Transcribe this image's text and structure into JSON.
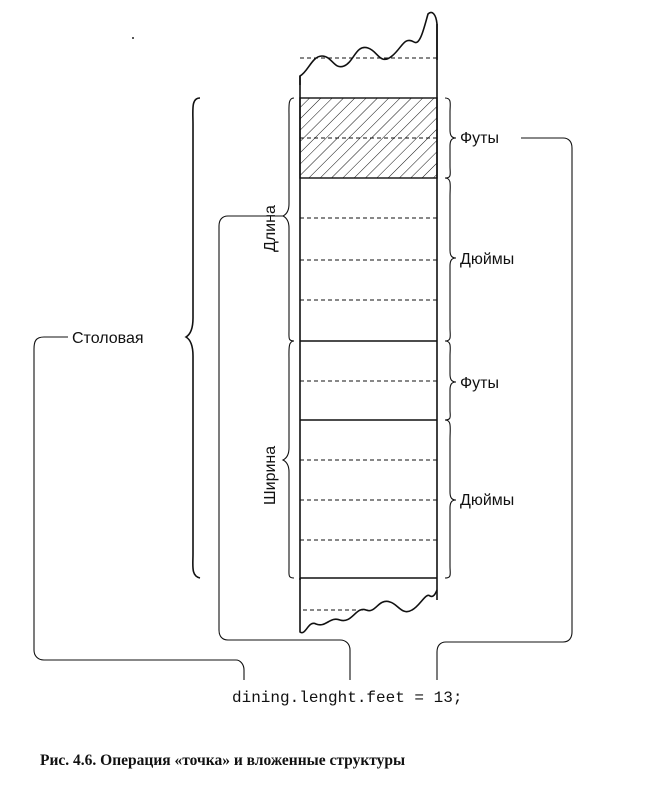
{
  "labels": {
    "dining": "Столовая",
    "length": "Длина",
    "width": "Ширина",
    "feet_top": "Футы",
    "inches_top": "Дюймы",
    "feet_bottom": "Футы",
    "inches_bottom": "Дюймы"
  },
  "code": "dining.lenght.feet = 13;",
  "caption": "Рис. 4.6. Операция «точка» и вложенные структуры"
}
